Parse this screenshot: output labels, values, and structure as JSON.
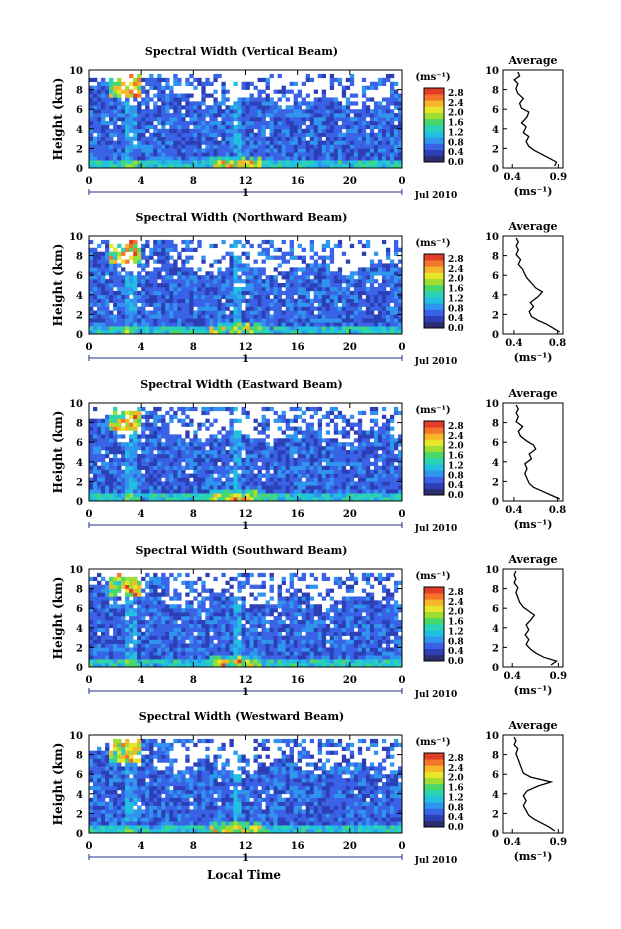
{
  "figure": {
    "common": {
      "ylabel": "Height (km)",
      "ylim": [
        0,
        10
      ],
      "yticks": [
        "0",
        "2",
        "4",
        "6",
        "8",
        "10"
      ],
      "xlim": [
        0,
        24
      ],
      "xticks": [
        "0",
        "4",
        "8",
        "12",
        "16",
        "20",
        "0"
      ],
      "day_label": "1",
      "date_label": "Jul 2010",
      "colorbar_unit": "(ms⁻¹)",
      "colorbar_ticks": [
        "0.0",
        "0.4",
        "0.8",
        "1.2",
        "1.6",
        "2.0",
        "2.4",
        "2.8"
      ],
      "colorbar_range": [
        0.0,
        3.0
      ],
      "colormap": [
        "#2b2d6e",
        "#2c3fb6",
        "#3a62e6",
        "#2f95ee",
        "#21bfe0",
        "#2ad3b3",
        "#49d66a",
        "#9fdd32",
        "#e8e62a",
        "#f7b52a",
        "#f3742a",
        "#e23c2a"
      ],
      "avg_title": "Average",
      "avg_xlabel": "(ms⁻¹)",
      "xlabel": "Local Time"
    },
    "panels": [
      {
        "title": "Spectral Width (Vertical Beam)",
        "avg_xticks": [
          "0.4",
          "0.9"
        ],
        "avg_xlim": [
          0.3,
          0.95
        ]
      },
      {
        "title": "Spectral Width (Northward Beam)",
        "avg_xticks": [
          "0.4",
          "0.8"
        ],
        "avg_xlim": [
          0.3,
          0.85
        ]
      },
      {
        "title": "Spectral Width (Eastward Beam)",
        "avg_xticks": [
          "0.4",
          "0.8"
        ],
        "avg_xlim": [
          0.3,
          0.85
        ]
      },
      {
        "title": "Spectral Width (Southward Beam)",
        "avg_xticks": [
          "0.4",
          "0.9"
        ],
        "avg_xlim": [
          0.3,
          0.95
        ]
      },
      {
        "title": "Spectral Width (Westward Beam)",
        "avg_xticks": [
          "0.4",
          "0.9"
        ],
        "avg_xlim": [
          0.3,
          0.95
        ]
      }
    ]
  },
  "chart_data": [
    {
      "type": "heatmap",
      "title": "Spectral Width (Vertical Beam)",
      "xlabel": "",
      "ylabel": "Height (km)",
      "xlim": [
        0,
        24
      ],
      "ylim": [
        0,
        10
      ],
      "zlim": [
        0,
        3
      ],
      "colorbar_label": "(ms⁻¹)"
    },
    {
      "type": "line",
      "title": "Average",
      "xlabel": "(ms⁻¹)",
      "ylabel": "",
      "xlim": [
        0.3,
        0.95
      ],
      "ylim": [
        0,
        10
      ],
      "x": [
        0.86,
        0.88,
        0.8,
        0.72,
        0.64,
        0.58,
        0.55,
        0.58,
        0.52,
        0.55,
        0.5,
        0.56,
        0.58,
        0.5,
        0.48,
        0.52,
        0.46,
        0.44,
        0.46,
        0.42,
        0.48,
        0.46
      ],
      "y": [
        0.2,
        0.6,
        1.0,
        1.4,
        1.8,
        2.2,
        2.7,
        3.2,
        3.6,
        4.2,
        4.6,
        5.2,
        5.7,
        6.1,
        6.6,
        7.1,
        7.6,
        8.1,
        8.6,
        9.0,
        9.4,
        9.8
      ]
    },
    {
      "type": "heatmap",
      "title": "Spectral Width (Northward Beam)",
      "xlabel": "",
      "ylabel": "Height (km)",
      "xlim": [
        0,
        24
      ],
      "ylim": [
        0,
        10
      ],
      "zlim": [
        0,
        3
      ],
      "colorbar_label": "(ms⁻¹)"
    },
    {
      "type": "line",
      "title": "Average",
      "xlabel": "(ms⁻¹)",
      "ylabel": "",
      "xlim": [
        0.3,
        0.85
      ],
      "ylim": [
        0,
        10
      ],
      "x": [
        0.82,
        0.76,
        0.7,
        0.62,
        0.56,
        0.54,
        0.58,
        0.55,
        0.62,
        0.66,
        0.6,
        0.56,
        0.52,
        0.5,
        0.48,
        0.44,
        0.46,
        0.42,
        0.44,
        0.42,
        0.44,
        0.42
      ],
      "y": [
        0.2,
        0.6,
        1.0,
        1.4,
        1.8,
        2.3,
        2.8,
        3.2,
        3.8,
        4.3,
        4.7,
        5.2,
        5.7,
        6.1,
        6.6,
        7.1,
        7.6,
        8.1,
        8.6,
        9.0,
        9.4,
        9.8
      ]
    },
    {
      "type": "heatmap",
      "title": "Spectral Width (Eastward Beam)",
      "xlabel": "",
      "ylabel": "Height (km)",
      "xlim": [
        0,
        24
      ],
      "ylim": [
        0,
        10
      ],
      "zlim": [
        0,
        3
      ],
      "colorbar_label": "(ms⁻¹)"
    },
    {
      "type": "line",
      "title": "Average",
      "xlabel": "(ms⁻¹)",
      "ylabel": "",
      "xlim": [
        0.3,
        0.85
      ],
      "ylim": [
        0,
        10
      ],
      "x": [
        0.82,
        0.74,
        0.66,
        0.58,
        0.54,
        0.52,
        0.5,
        0.52,
        0.5,
        0.56,
        0.54,
        0.6,
        0.58,
        0.52,
        0.46,
        0.44,
        0.48,
        0.42,
        0.44,
        0.42,
        0.44,
        0.42
      ],
      "y": [
        0.2,
        0.6,
        1.0,
        1.4,
        1.8,
        2.3,
        2.8,
        3.3,
        3.8,
        4.3,
        4.8,
        5.3,
        5.7,
        6.1,
        6.6,
        7.1,
        7.6,
        8.1,
        8.6,
        9.0,
        9.4,
        9.8
      ]
    },
    {
      "type": "heatmap",
      "title": "Spectral Width (Southward Beam)",
      "xlabel": "",
      "ylabel": "Height (km)",
      "xlim": [
        0,
        24
      ],
      "ylim": [
        0,
        10
      ],
      "zlim": [
        0,
        3
      ],
      "colorbar_label": "(ms⁻¹)"
    },
    {
      "type": "line",
      "title": "Average",
      "xlabel": "(ms⁻¹)",
      "ylabel": "",
      "xlim": [
        0.3,
        0.95
      ],
      "ylim": [
        0,
        10
      ],
      "x": [
        0.82,
        0.88,
        0.74,
        0.66,
        0.6,
        0.55,
        0.58,
        0.54,
        0.58,
        0.55,
        0.6,
        0.64,
        0.58,
        0.52,
        0.48,
        0.46,
        0.44,
        0.46,
        0.42,
        0.44,
        0.42,
        0.44
      ],
      "y": [
        0.2,
        0.6,
        1.0,
        1.4,
        1.8,
        2.3,
        2.8,
        3.3,
        3.8,
        4.3,
        4.8,
        5.3,
        5.7,
        6.1,
        6.6,
        7.1,
        7.6,
        8.1,
        8.6,
        9.0,
        9.4,
        9.8
      ]
    },
    {
      "type": "heatmap",
      "title": "Spectral Width (Westward Beam)",
      "xlabel": "Local Time",
      "ylabel": "Height (km)",
      "xlim": [
        0,
        24
      ],
      "ylim": [
        0,
        10
      ],
      "zlim": [
        0,
        3
      ],
      "colorbar_label": "(ms⁻¹)"
    },
    {
      "type": "line",
      "title": "Average",
      "xlabel": "(ms⁻¹)",
      "ylabel": "",
      "xlim": [
        0.3,
        0.95
      ],
      "ylim": [
        0,
        10
      ],
      "x": [
        0.86,
        0.8,
        0.72,
        0.64,
        0.58,
        0.55,
        0.52,
        0.55,
        0.52,
        0.56,
        0.68,
        0.82,
        0.6,
        0.52,
        0.5,
        0.48,
        0.46,
        0.44,
        0.46,
        0.42,
        0.44,
        0.42
      ],
      "y": [
        0.2,
        0.6,
        1.0,
        1.4,
        1.8,
        2.3,
        2.8,
        3.3,
        3.8,
        4.3,
        4.8,
        5.2,
        5.7,
        6.1,
        6.6,
        7.1,
        7.6,
        8.1,
        8.6,
        9.0,
        9.4,
        9.8
      ]
    }
  ]
}
